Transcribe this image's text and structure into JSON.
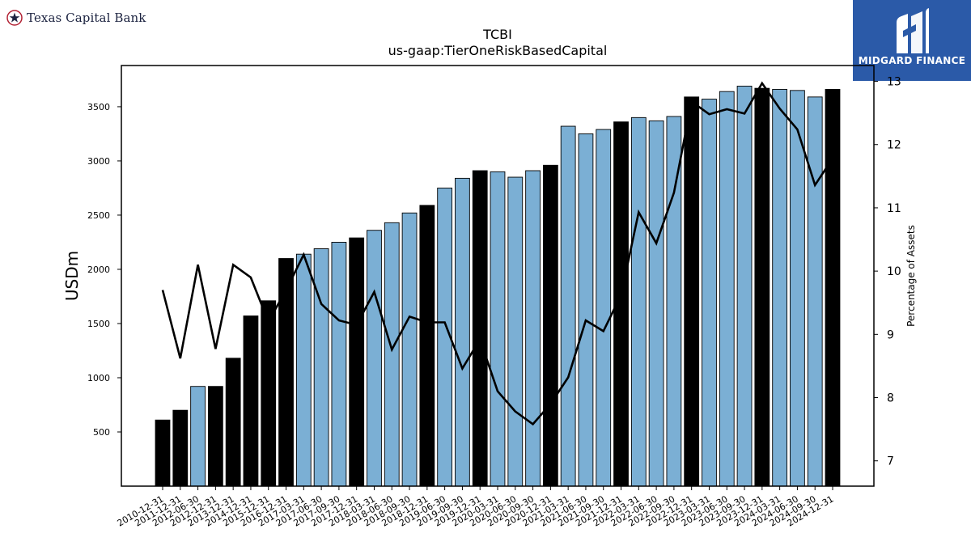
{
  "header": {
    "brand_name": "Texas Capital Bank",
    "badge_logo_text": "MIDGARD FINANCE"
  },
  "colors": {
    "bar_highlight": "#000000",
    "bar_normal": "#7bafd4",
    "line": "#000000",
    "badge_bg": "#2b5aa8",
    "brand_star": "#b22234",
    "brand_text": "#1c2340"
  },
  "chart_data": {
    "type": "bar",
    "title": "TCBI",
    "subtitle": "us-gaap:TierOneRiskBasedCapital",
    "ylabel": "USDm",
    "y2label": "Percentage of Assets",
    "ylim": [
      0,
      3880
    ],
    "y2lim": [
      6.6,
      13.25
    ],
    "yticks": [
      500,
      1000,
      1500,
      2000,
      2500,
      3000,
      3500
    ],
    "y2ticks": [
      7,
      8,
      9,
      10,
      11,
      12,
      13
    ],
    "grid": false,
    "categories": [
      "2010-12-31",
      "2011-12-31",
      "2012-06-30",
      "2012-12-31",
      "2013-12-31",
      "2014-12-31",
      "2015-12-31",
      "2016-12-31",
      "2017-03-31",
      "2017-06-30",
      "2017-09-30",
      "2017-12-31",
      "2018-03-31",
      "2018-06-30",
      "2018-09-30",
      "2018-12-31",
      "2019-06-30",
      "2019-09-30",
      "2019-12-31",
      "2020-03-31",
      "2020-06-30",
      "2020-09-30",
      "2020-12-31",
      "2021-03-31",
      "2021-06-30",
      "2021-09-30",
      "2021-12-31",
      "2022-03-31",
      "2022-06-30",
      "2022-09-30",
      "2022-12-31",
      "2023-03-31",
      "2023-06-30",
      "2023-09-30",
      "2023-12-31",
      "2024-03-31",
      "2024-06-30",
      "2024-09-30",
      "2024-12-31"
    ],
    "series": [
      {
        "values": [
          610,
          700,
          920,
          920,
          1180,
          1570,
          1710,
          2100,
          2140,
          2190,
          2250,
          2290,
          2360,
          2430,
          2520,
          2590,
          2750,
          2840,
          2910,
          2900,
          2850,
          2910,
          2960,
          3320,
          3250,
          3290,
          3360,
          3400,
          3370,
          3410,
          3590,
          3570,
          3640,
          3690,
          3670,
          3660,
          3650,
          3590,
          3660
        ],
        "highlight": [
          true,
          true,
          false,
          true,
          true,
          true,
          true,
          true,
          false,
          false,
          false,
          true,
          false,
          false,
          false,
          true,
          false,
          false,
          true,
          false,
          false,
          false,
          true,
          false,
          false,
          false,
          true,
          false,
          false,
          false,
          true,
          false,
          false,
          false,
          true,
          false,
          false,
          false,
          true
        ]
      },
      {
        "axis": "right",
        "values": [
          9.7,
          8.62,
          10.1,
          8.77,
          10.1,
          9.9,
          9.2,
          9.7,
          10.26,
          9.48,
          9.22,
          9.15,
          9.67,
          8.76,
          9.28,
          9.19,
          9.19,
          8.46,
          8.92,
          8.1,
          7.78,
          7.58,
          7.9,
          8.32,
          9.22,
          9.05,
          9.62,
          10.93,
          10.44,
          11.24,
          12.68,
          12.48,
          12.56,
          12.49,
          12.97,
          12.57,
          12.24,
          11.36,
          11.78
        ]
      }
    ]
  }
}
